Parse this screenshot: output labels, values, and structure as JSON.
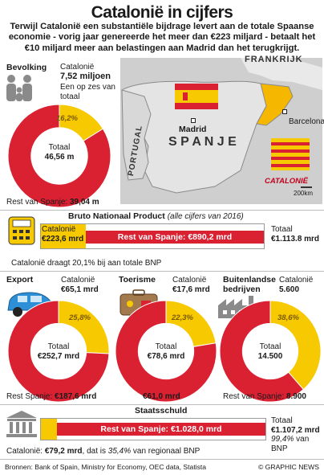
{
  "title": "Catalonië in cijfers",
  "subtitle": "Terwijl Catalonië een substantiële bijdrage levert aan de totale Spaanse economie - vorig jaar genereerde het meer dan €223 miljard - betaalt het €10 miljard meer aan belastingen aan Madrid dan het terugkrijgt.",
  "colors": {
    "red": "#d92132",
    "yellow": "#f7c900",
    "map_bg": "#cfcfcf",
    "spain_fill": "#e4e4e4",
    "cat_fill": "#f5b700"
  },
  "map": {
    "frankrijk": "FRANKRIJK",
    "portugal": "PORTUGAL",
    "spanje": "S P A N J E",
    "madrid": "Madrid",
    "barcelona": "Barcelona",
    "catalonie": "CATALONIË",
    "scale": "200km"
  },
  "bevolking": {
    "heading": "Bevolking",
    "region": "Catalonië",
    "value": "7,52 miljoen",
    "note": "Een op zes van totaal",
    "pct": "16,2%",
    "total_label": "Totaal",
    "total_value": "46,56 m",
    "rest_label": "Rest van Spanje:",
    "rest_value": "39,04 m"
  },
  "bnp": {
    "heading": "Bruto Nationaal Product",
    "heading_note": "(alle cijfers van 2016)",
    "region_label": "Catalonië",
    "region_value": "€223,6 mrd",
    "rest_text": "Rest van Spanje: €890,2 mrd",
    "total_label": "Totaal",
    "total_value": "€1.113.8 mrd",
    "note": "Catalonië draagt 20,1% bij aan totale BNP"
  },
  "export": {
    "heading": "Export",
    "region": "Catalonië",
    "value": "€65,1 mrd",
    "pct": "25,8%",
    "total_label": "Totaal",
    "total_value": "€252,7 mrd",
    "rest_label": "Rest Spanje:",
    "rest_value": "€187,6 mrd"
  },
  "toerisme": {
    "heading": "Toerisme",
    "region": "Catalonië",
    "value": "€17,6 mrd",
    "pct": "22,3%",
    "total_label": "Totaal",
    "total_value": "€78,6 mrd",
    "rest_value": "€61,0 mrd"
  },
  "bedrijven": {
    "heading": "Buitenlandse bedrijven",
    "region": "Catalonië",
    "value": "5.600",
    "pct": "38,6%",
    "total_label": "Totaal",
    "total_value": "14.500",
    "rest_label": "Rest van Spanje:",
    "rest_value": "8.900"
  },
  "schuld": {
    "heading": "Staatsschuld",
    "rest_text": "Rest van Spanje: €1.028,0 mrd",
    "total_label": "Totaal",
    "total_value": "€1.107,2 mrd",
    "total_note_pct": "99,4%",
    "total_note_rest": "van BNP",
    "region_label": "Catalonië:",
    "region_value": "€79,2 mrd",
    "region_note_pre": ", dat is",
    "region_note_pct": "35,4%",
    "region_note_post": "van regionaal BNP"
  },
  "footer": {
    "sources": "Bronnen: Bank of Spain, Ministry for Economy, OEC data, Statista",
    "credit": "© GRAPHIC NEWS"
  },
  "chart_data": [
    {
      "type": "pie",
      "title": "Bevolking",
      "categories": [
        "Catalonië",
        "Rest van Spanje"
      ],
      "values": [
        7.52,
        39.04
      ],
      "unit": "miljoen",
      "total": 46.56
    },
    {
      "type": "bar",
      "title": "Bruto Nationaal Product",
      "categories": [
        "Catalonië",
        "Rest van Spanje"
      ],
      "values": [
        223.6,
        890.2
      ],
      "unit": "€ mrd"
    },
    {
      "type": "pie",
      "title": "Export",
      "categories": [
        "Catalonië",
        "Rest Spanje"
      ],
      "values": [
        65.1,
        187.6
      ],
      "unit": "€ mrd",
      "total": 252.7
    },
    {
      "type": "pie",
      "title": "Toerisme",
      "categories": [
        "Catalonië",
        "Rest Spanje"
      ],
      "values": [
        17.6,
        61.0
      ],
      "unit": "€ mrd",
      "total": 78.6
    },
    {
      "type": "pie",
      "title": "Buitenlandse bedrijven",
      "categories": [
        "Catalonië",
        "Rest van Spanje"
      ],
      "values": [
        5600,
        8900
      ],
      "total": 14500
    },
    {
      "type": "bar",
      "title": "Staatsschuld",
      "categories": [
        "Catalonië",
        "Rest van Spanje"
      ],
      "values": [
        79.2,
        1028.0
      ],
      "unit": "€ mrd"
    }
  ]
}
